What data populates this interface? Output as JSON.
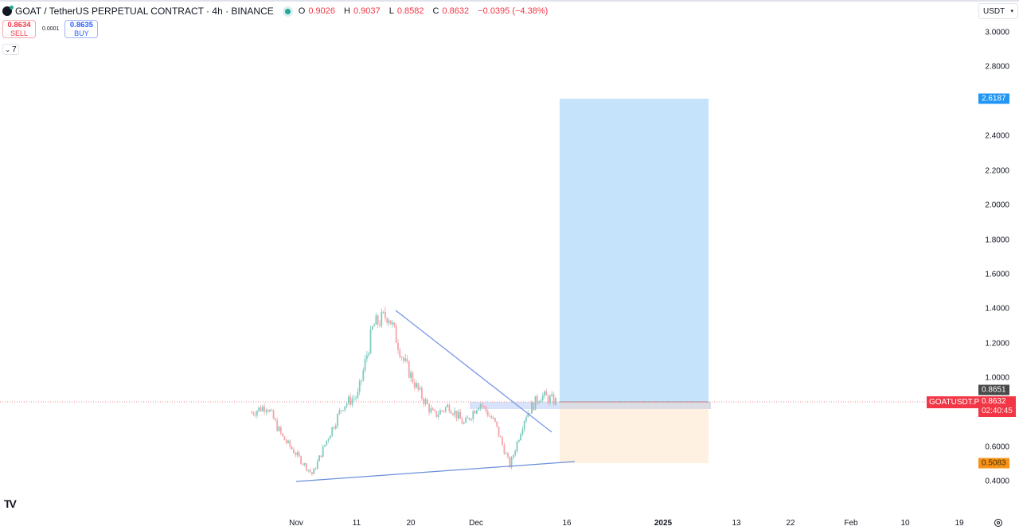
{
  "header": {
    "symbol_title": "GOAT / TetherUS PERPETUAL CONTRACT · 4h · BINANCE",
    "market_status_color": "#26a69a",
    "ohlc": {
      "open_label": "O",
      "open": "0.9026",
      "high_label": "H",
      "high": "0.9037",
      "low_label": "L",
      "low": "0.8582",
      "close_label": "C",
      "close": "0.8632",
      "change": "−0.0395 (−4.38%)"
    }
  },
  "trade_panel": {
    "sell_price": "0.8634",
    "sell_label": "SELL",
    "spread": "0.0001",
    "buy_price": "0.8635",
    "buy_label": "BUY"
  },
  "indicators_toggle": {
    "icon": "chevron-down-icon",
    "count": "7"
  },
  "currency_select": {
    "value": "USDT",
    "icon": "caret-down-icon"
  },
  "price_labels": {
    "target": {
      "value": "2.6187",
      "color": "#2196f3"
    },
    "entry": {
      "value": "0.8651",
      "color": "#4a4a4a"
    },
    "current": {
      "symbol": "GOATUSDT.P",
      "value": "0.8632",
      "countdown": "02:40:45",
      "color": "#f23645"
    },
    "stop": {
      "value": "0.5083",
      "color": "#f7931a"
    }
  },
  "branding": {
    "logo_text": "TV"
  },
  "chart_data": {
    "type": "candlestick",
    "title": "GOAT / TetherUS PERPETUAL CONTRACT · 4h · BINANCE",
    "xlabel": "",
    "ylabel": "USDT",
    "ylim": [
      0.4,
      3.0
    ],
    "y_ticks": [
      "3.0000",
      "2.8000",
      "2.4000",
      "2.2000",
      "2.0000",
      "1.8000",
      "1.6000",
      "1.4000",
      "1.2000",
      "1.0000",
      "0.6000",
      "0.4000"
    ],
    "x_ticks": [
      "Nov",
      "11",
      "20",
      "Dec",
      "16",
      "2025",
      "13",
      "22",
      "Feb",
      "10",
      "19"
    ],
    "grid": false,
    "approx_price_path": [
      {
        "date": "Oct 28",
        "price": 0.8
      },
      {
        "date": "Oct 30",
        "price": 0.84
      },
      {
        "date": "Nov 1",
        "price": 0.66
      },
      {
        "date": "Nov 3",
        "price": 0.55
      },
      {
        "date": "Nov 5",
        "price": 0.44
      },
      {
        "date": "Nov 8",
        "price": 0.65
      },
      {
        "date": "Nov 11",
        "price": 0.84
      },
      {
        "date": "Nov 14",
        "price": 0.9
      },
      {
        "date": "Nov 17",
        "price": 1.3
      },
      {
        "date": "Nov 18",
        "price": 1.37
      },
      {
        "date": "Nov 21",
        "price": 1.1
      },
      {
        "date": "Nov 24",
        "price": 0.92
      },
      {
        "date": "Nov 27",
        "price": 0.78
      },
      {
        "date": "Dec 1",
        "price": 0.84
      },
      {
        "date": "Dec 4",
        "price": 0.73
      },
      {
        "date": "Dec 7",
        "price": 0.86
      },
      {
        "date": "Dec 9",
        "price": 0.74
      },
      {
        "date": "Dec 10",
        "price": 0.49
      },
      {
        "date": "Dec 12",
        "price": 0.78
      },
      {
        "date": "Dec 14",
        "price": 0.9
      },
      {
        "date": "Dec 14 (last)",
        "price": 0.8632
      }
    ],
    "current_price": 0.8632,
    "drawings": {
      "long_position": {
        "entry": 0.8651,
        "target": 2.6187,
        "stop": 0.5083
      },
      "descending_trendline": {
        "from": {
          "date": "Nov 18",
          "price": 1.37
        },
        "to": {
          "date": "Dec 13",
          "price": 0.68
        }
      },
      "ascending_trendline": {
        "from": {
          "date": "Nov 5",
          "price": 0.4
        },
        "to": {
          "date": "Dec 16",
          "price": 0.52
        }
      },
      "resistance_zone": {
        "from_price": 0.845,
        "to_price": 0.865
      }
    }
  }
}
